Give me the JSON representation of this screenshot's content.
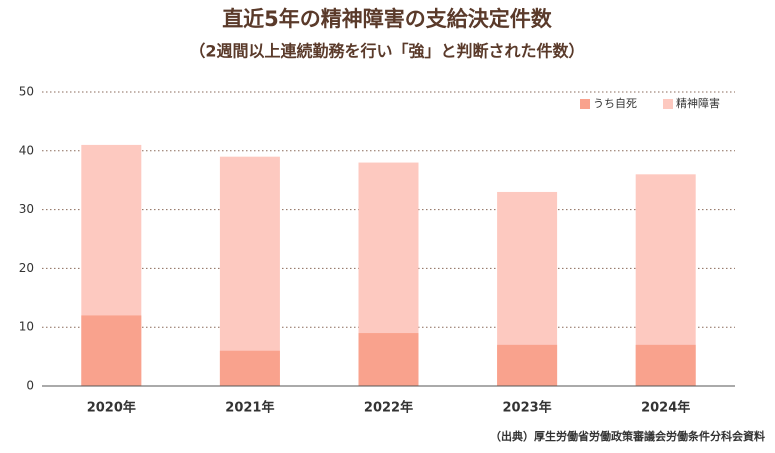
{
  "chart_data": {
    "type": "bar",
    "overlap": true,
    "title": "直近5年の精神障害の支給決定件数",
    "subtitle": "（2週間以上連続勤務を行い「強」と判断された件数）",
    "source": "（出典）厚生労働省労働政策審議会労働条件分科会資料",
    "categories": [
      "2020年",
      "2021年",
      "2022年",
      "2023年",
      "2024年"
    ],
    "series": [
      {
        "name": "精神障害",
        "color": "#fdc9c0",
        "values": [
          41,
          39,
          38,
          33,
          36
        ]
      },
      {
        "name": "うち自死",
        "color": "#f9a28d",
        "values": [
          12,
          6,
          9,
          7,
          7
        ]
      }
    ],
    "legend_order": [
      1,
      0
    ],
    "ylim": [
      0,
      50
    ],
    "yticks": [
      0,
      10,
      20,
      30,
      40,
      50
    ],
    "grid": true
  }
}
